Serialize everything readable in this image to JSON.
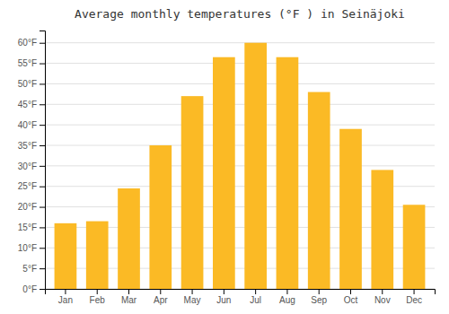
{
  "chart_data": {
    "type": "bar",
    "title": "Average monthly temperatures (°F ) in Seinäjoki",
    "categories": [
      "Jan",
      "Feb",
      "Mar",
      "Apr",
      "May",
      "Jun",
      "Jul",
      "Aug",
      "Sep",
      "Oct",
      "Nov",
      "Dec"
    ],
    "values": [
      16,
      16.5,
      24.5,
      35,
      47,
      56.5,
      60,
      56.5,
      48,
      39,
      29,
      20.5
    ],
    "color": "#FBBA25",
    "ylim": [
      0,
      63
    ],
    "yticks": [
      {
        "value": 0,
        "label": "0°F"
      },
      {
        "value": 5,
        "label": "5°F"
      },
      {
        "value": 10,
        "label": "10°F"
      },
      {
        "value": 15,
        "label": "15°F"
      },
      {
        "value": 20,
        "label": "20°F"
      },
      {
        "value": 25,
        "label": "25°F"
      },
      {
        "value": 30,
        "label": "30°F"
      },
      {
        "value": 35,
        "label": "35°F"
      },
      {
        "value": 40,
        "label": "40°F"
      },
      {
        "value": 45,
        "label": "45°F"
      },
      {
        "value": 50,
        "label": "50°F"
      },
      {
        "value": 55,
        "label": "55°F"
      },
      {
        "value": 60,
        "label": "60°F"
      }
    ],
    "grid": true
  }
}
